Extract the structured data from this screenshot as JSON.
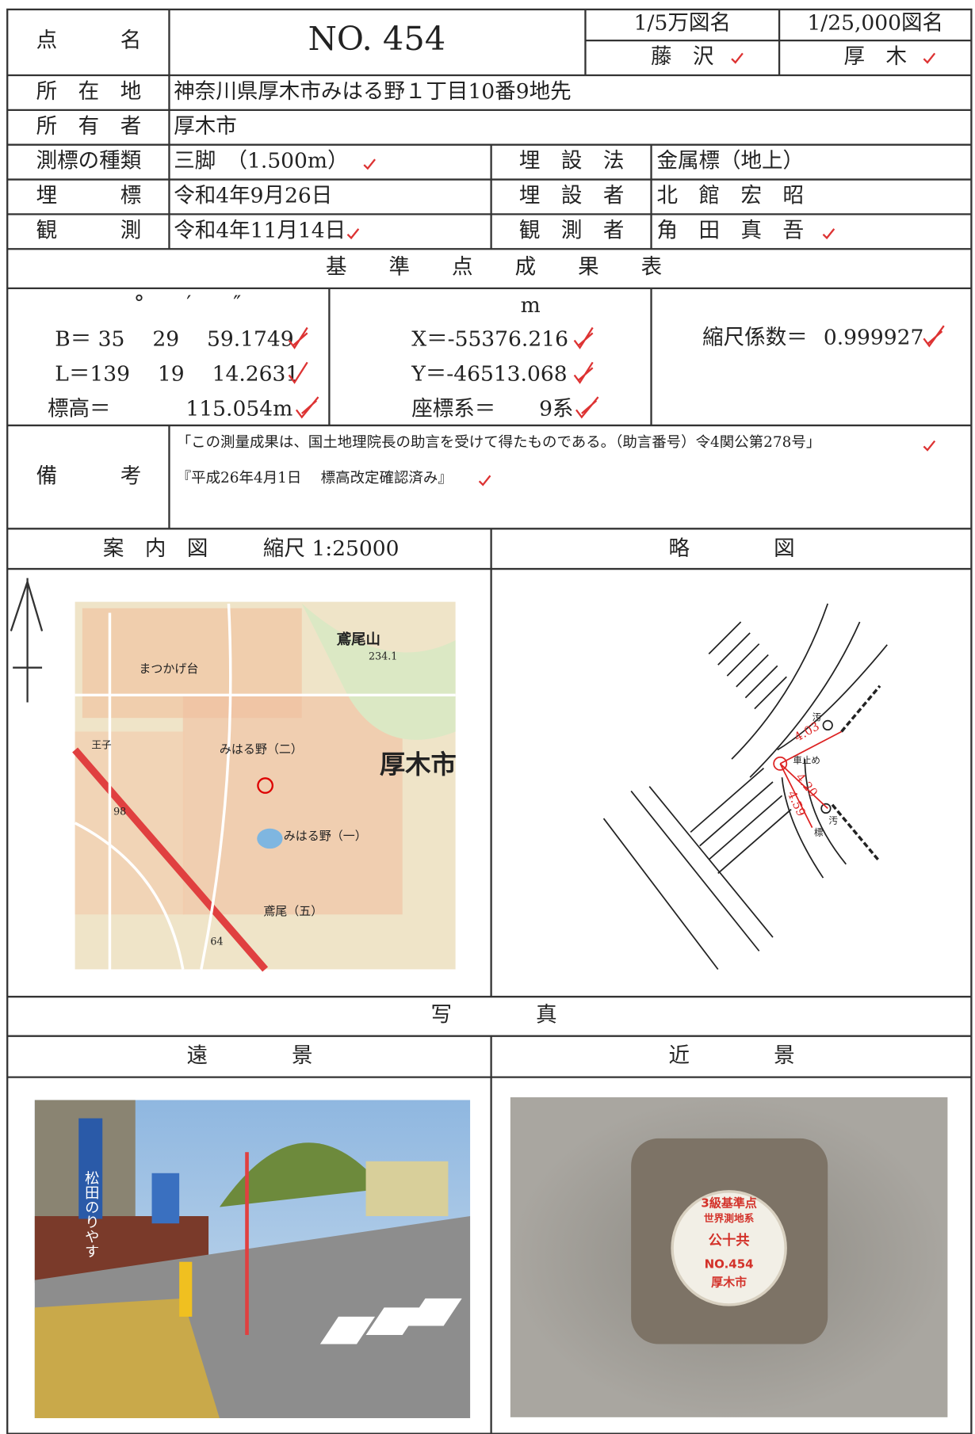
{
  "header": {
    "point_name_label": "点　　　名",
    "point_name": "NO. 454",
    "map50k_label": "1/5万図名",
    "map50k": "藤　沢",
    "map25k_label": "1/25,000図名",
    "map25k": "厚　木"
  },
  "location": {
    "label": "所　在　地",
    "value": "神奈川県厚木市みはる野１丁目10番9地先"
  },
  "owner": {
    "label": "所　有　者",
    "value": "厚木市"
  },
  "marker_type": {
    "label": "測標の種類",
    "value": "三脚　（1.500m）"
  },
  "burial_method": {
    "label": "埋　設　法",
    "value": "金属標（地上）"
  },
  "burial_date": {
    "label": "埋　　　標",
    "value": "令和4年9月26日"
  },
  "burier": {
    "label": "埋　設　者",
    "value": "北　館　宏　昭"
  },
  "observation_date": {
    "label": "観　　　測",
    "value": "令和4年11月14日"
  },
  "observer": {
    "label": "観　測　者",
    "value": "角　田　真　吾"
  },
  "results": {
    "title": "基　　準　　点　　成　　果　　表",
    "angle_units": "°　　′　　″",
    "B": "B＝ 35　 29　 59.1749",
    "L": "L＝139　 19　 14.2631",
    "height_label": "標高＝",
    "height": "115.054m",
    "length_unit": "m",
    "X": "X＝-55376.216",
    "Y": "Y＝-46513.068",
    "system_label": "座標系＝",
    "system": "9系",
    "scale_label": "縮尺係数＝",
    "scale": "0.999927"
  },
  "remarks": {
    "label": "備　　　考",
    "lines": [
      "「この測量成果は、国土地理院長の助言を受けて得たものである。（助言番号）令4関公第278号」",
      "『平成26年4月1日　 標高改定確認済み』"
    ]
  },
  "guide_map": {
    "title": "案　内　図",
    "scale": "縮尺 1:25000",
    "labels": [
      "鳶尾山",
      "234.1",
      "まつかげ台",
      "みはる野（二）",
      "厚木市",
      "みはる野（一）",
      "鳶尾（五）",
      "王子",
      "98",
      "64"
    ]
  },
  "sketch": {
    "title": "略　　　　図",
    "labels": [
      "4.03",
      "4.20",
      "4.59",
      "汚",
      "車止め",
      "汚",
      "標"
    ]
  },
  "photos": {
    "title": "写　　　　真",
    "far": "遠　　　　景",
    "near": "近　　　　景",
    "medallion": [
      "3級基準点",
      "世界測地系",
      "公十共",
      "NO.454",
      "厚木市"
    ],
    "banner": "松田のりやす"
  }
}
